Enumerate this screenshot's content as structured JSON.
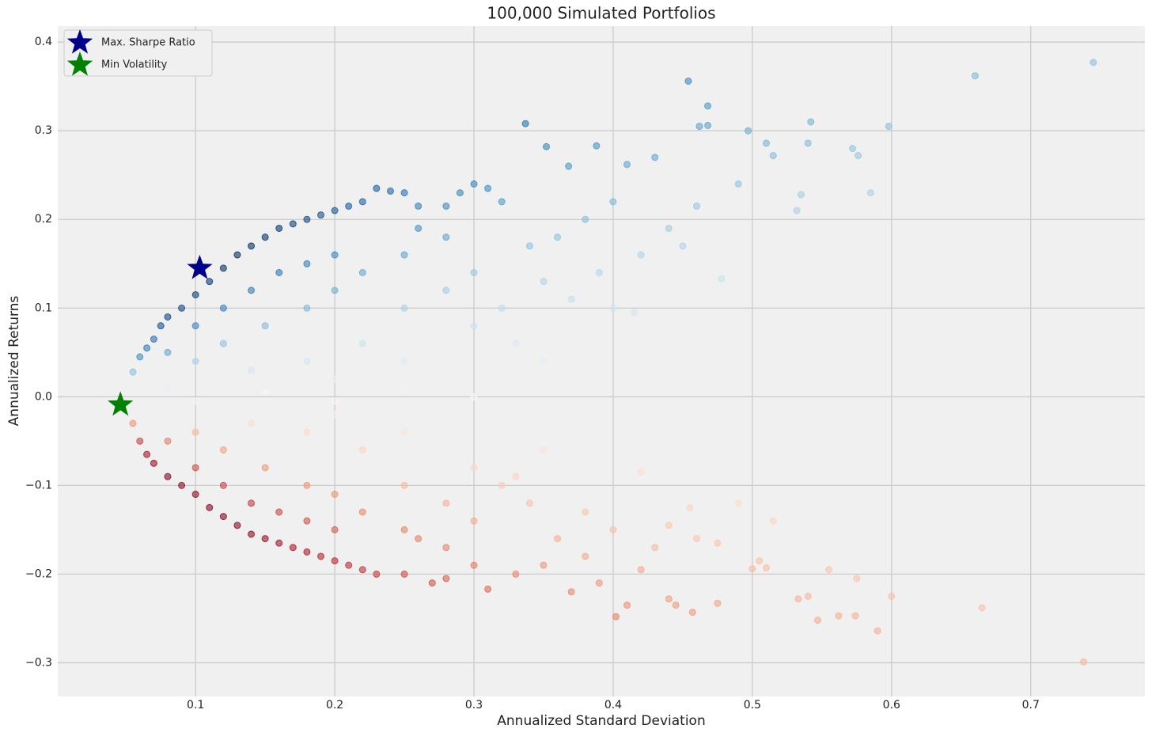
{
  "chart_data": {
    "type": "scatter",
    "title": "100,000 Simulated Portfolios",
    "x_label": "Annualized Standard Deviation",
    "y_label": "Annualized Returns",
    "xlim": [
      0.001,
      0.782
    ],
    "ylim": [
      -0.338,
      0.418
    ],
    "xticks": [
      0.1,
      0.2,
      0.3,
      0.4,
      0.5,
      0.6,
      0.7
    ],
    "yticks": [
      {
        "value": -0.3,
        "label": "−0.3"
      },
      {
        "value": -0.2,
        "label": "−0.2"
      },
      {
        "value": -0.1,
        "label": "−0.1"
      },
      {
        "value": 0,
        "label": "0.0"
      },
      0.1,
      0.2,
      0.3,
      0.4
    ],
    "grid": true,
    "legend": "upper left",
    "color_scale": [
      "#67001f",
      "#b2182b",
      "#d6604d",
      "#f4a582",
      "#fddbc7",
      "#f7f7f7",
      "#d1e5f0",
      "#92c5de",
      "#4393c3",
      "#2166ac",
      "#053061"
    ],
    "x": [
      0.055,
      0.06,
      0.065,
      0.07,
      0.075,
      0.08,
      0.09,
      0.1,
      0.11,
      0.12,
      0.13,
      0.14,
      0.15,
      0.16,
      0.17,
      0.18,
      0.19,
      0.2,
      0.21,
      0.22,
      0.23,
      0.24,
      0.25,
      0.26,
      0.28,
      0.29,
      0.3,
      0.31,
      0.32,
      0.08,
      0.1,
      0.12,
      0.14,
      0.16,
      0.18,
      0.2,
      0.1,
      0.12,
      0.15,
      0.18,
      0.2,
      0.22,
      0.25,
      0.22,
      0.25,
      0.28,
      0.3,
      0.3,
      0.32,
      0.14,
      0.18,
      0.2,
      0.25,
      0.28,
      0.26,
      0.337,
      0.352,
      0.368,
      0.388,
      0.41,
      0.43,
      0.454,
      0.468,
      0.462,
      0.468,
      0.497,
      0.51,
      0.542,
      0.54,
      0.572,
      0.598,
      0.66,
      0.745,
      0.585,
      0.535,
      0.49,
      0.46,
      0.44,
      0.4,
      0.38,
      0.36,
      0.34,
      0.42,
      0.45,
      0.478,
      0.415,
      0.39,
      0.35,
      0.37,
      0.33,
      0.35,
      0.4,
      0.515,
      0.532,
      0.576,
      0.055,
      0.06,
      0.065,
      0.07,
      0.08,
      0.09,
      0.1,
      0.11,
      0.12,
      0.13,
      0.14,
      0.15,
      0.16,
      0.17,
      0.18,
      0.19,
      0.2,
      0.21,
      0.22,
      0.23,
      0.25,
      0.27,
      0.28,
      0.3,
      0.08,
      0.1,
      0.12,
      0.14,
      0.16,
      0.18,
      0.2,
      0.1,
      0.12,
      0.15,
      0.18,
      0.2,
      0.22,
      0.25,
      0.22,
      0.25,
      0.28,
      0.3,
      0.3,
      0.32,
      0.14,
      0.18,
      0.2,
      0.25,
      0.28,
      0.26,
      0.31,
      0.33,
      0.35,
      0.37,
      0.39,
      0.402,
      0.41,
      0.42,
      0.44,
      0.445,
      0.457,
      0.475,
      0.5,
      0.505,
      0.533,
      0.54,
      0.547,
      0.562,
      0.574,
      0.59,
      0.6,
      0.665,
      0.738,
      0.555,
      0.575,
      0.51,
      0.49,
      0.455,
      0.44,
      0.42,
      0.4,
      0.38,
      0.36,
      0.34,
      0.33,
      0.35,
      0.475,
      0.515,
      0.46,
      0.38,
      0.43,
      0.06,
      0.08,
      0.1,
      0.15,
      0.2,
      0.25,
      0.3
    ],
    "y": [
      0.028,
      0.045,
      0.055,
      0.065,
      0.08,
      0.09,
      0.1,
      0.115,
      0.13,
      0.145,
      0.16,
      0.17,
      0.18,
      0.19,
      0.195,
      0.2,
      0.205,
      0.21,
      0.215,
      0.22,
      0.235,
      0.232,
      0.23,
      0.215,
      0.215,
      0.23,
      0.24,
      0.235,
      0.22,
      0.05,
      0.08,
      0.1,
      0.12,
      0.14,
      0.15,
      0.16,
      0.04,
      0.06,
      0.08,
      0.1,
      0.12,
      0.14,
      0.16,
      0.06,
      0.1,
      0.12,
      0.14,
      0.08,
      0.1,
      0.03,
      0.04,
      0.02,
      0.04,
      0.18,
      0.19,
      0.308,
      0.282,
      0.26,
      0.283,
      0.262,
      0.27,
      0.356,
      0.328,
      0.305,
      0.306,
      0.3,
      0.286,
      0.31,
      0.286,
      0.28,
      0.305,
      0.362,
      0.377,
      0.23,
      0.228,
      0.24,
      0.215,
      0.19,
      0.22,
      0.2,
      0.18,
      0.17,
      0.16,
      0.17,
      0.133,
      0.095,
      0.14,
      0.13,
      0.11,
      0.06,
      0.04,
      0.1,
      0.272,
      0.21,
      0.272,
      -0.03,
      -0.05,
      -0.065,
      -0.075,
      -0.09,
      -0.1,
      -0.11,
      -0.125,
      -0.135,
      -0.145,
      -0.155,
      -0.16,
      -0.165,
      -0.17,
      -0.175,
      -0.18,
      -0.185,
      -0.19,
      -0.195,
      -0.2,
      -0.2,
      -0.21,
      -0.205,
      -0.19,
      -0.05,
      -0.08,
      -0.1,
      -0.12,
      -0.13,
      -0.14,
      -0.15,
      -0.04,
      -0.06,
      -0.08,
      -0.1,
      -0.11,
      -0.13,
      -0.15,
      -0.06,
      -0.1,
      -0.12,
      -0.14,
      -0.08,
      -0.1,
      -0.03,
      -0.04,
      -0.02,
      -0.04,
      -0.17,
      -0.16,
      -0.217,
      -0.2,
      -0.19,
      -0.22,
      -0.21,
      -0.248,
      -0.235,
      -0.195,
      -0.228,
      -0.235,
      -0.243,
      -0.233,
      -0.194,
      -0.185,
      -0.228,
      -0.225,
      -0.252,
      -0.247,
      -0.247,
      -0.264,
      -0.225,
      -0.238,
      -0.299,
      -0.195,
      -0.205,
      -0.193,
      -0.12,
      -0.125,
      -0.145,
      -0.085,
      -0.15,
      -0.13,
      -0.16,
      -0.12,
      -0.09,
      -0.06,
      -0.165,
      -0.14,
      -0.16,
      -0.18,
      -0.17,
      0.005,
      0.01,
      -0.005,
      0.005,
      -0.005,
      0.01,
      0.0
    ],
    "markers": [
      {
        "name": "Max. Sharpe Ratio",
        "color": "#00008b",
        "x": 0.103,
        "y": 0.145
      },
      {
        "name": "Min Volatility",
        "color": "#008000",
        "x": 0.046,
        "y": -0.009
      }
    ]
  }
}
